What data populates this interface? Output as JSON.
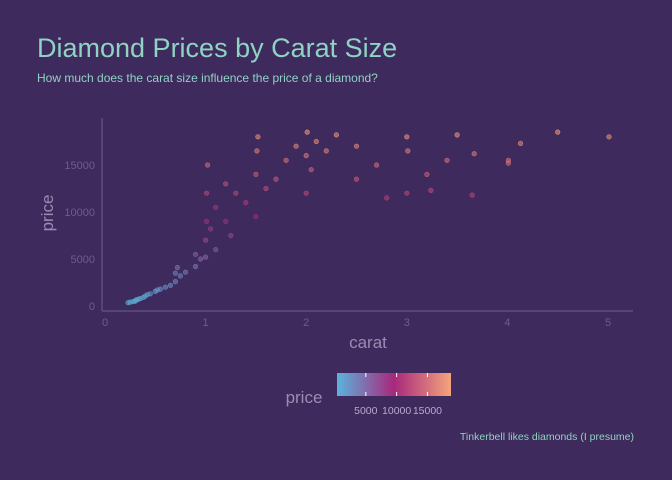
{
  "chart_data": {
    "type": "scatter",
    "title": "Diamond Prices by Carat Size",
    "subtitle": "How much does the carat size influence the price of a diamond?",
    "xlabel": "carat",
    "ylabel": "price",
    "caption": "Tinkerbell likes diamonds (I presume)",
    "xlim": [
      0,
      5.25
    ],
    "ylim": [
      0,
      19500
    ],
    "x_ticks": [
      0,
      1,
      2,
      3,
      4,
      5
    ],
    "x_tick_labels": [
      "0",
      "1",
      "2",
      "3",
      "4",
      "5"
    ],
    "y_ticks": [
      0,
      5000,
      10000,
      15000
    ],
    "y_tick_labels": [
      "0",
      "5000",
      "10000",
      "15000"
    ],
    "grid": false,
    "color_scale": {
      "variable": "price",
      "low_color": "#5bb3dd",
      "mid_color": "#a8287c",
      "high_color": "#f4a47c",
      "range": [
        326,
        18823
      ],
      "ticks": [
        5000,
        10000,
        15000
      ],
      "tick_labels": [
        "5000",
        "10000",
        "15000"
      ]
    },
    "legend_position": "bottom",
    "colors": {
      "background": "#3e2a5c",
      "title": "#8fd3c3",
      "axis": "#6f5d8e"
    },
    "series": [
      {
        "points": [
          [
            0.23,
            350
          ],
          [
            0.25,
            420
          ],
          [
            0.28,
            480
          ],
          [
            0.3,
            520
          ],
          [
            0.31,
            650
          ],
          [
            0.33,
            700
          ],
          [
            0.35,
            800
          ],
          [
            0.38,
            900
          ],
          [
            0.4,
            1050
          ],
          [
            0.42,
            1200
          ],
          [
            0.45,
            1300
          ],
          [
            0.5,
            1550
          ],
          [
            0.52,
            1700
          ],
          [
            0.55,
            1800
          ],
          [
            0.6,
            2000
          ],
          [
            0.65,
            2200
          ],
          [
            0.7,
            2600
          ],
          [
            0.7,
            3500
          ],
          [
            0.72,
            4100
          ],
          [
            0.75,
            3200
          ],
          [
            0.8,
            3600
          ],
          [
            0.9,
            4200
          ],
          [
            0.9,
            5500
          ],
          [
            0.95,
            5000
          ],
          [
            1.0,
            5200
          ],
          [
            1.0,
            7000
          ],
          [
            1.01,
            9000
          ],
          [
            1.01,
            12000
          ],
          [
            1.02,
            15000
          ],
          [
            1.05,
            8200
          ],
          [
            1.1,
            6000
          ],
          [
            1.1,
            10500
          ],
          [
            1.2,
            9000
          ],
          [
            1.2,
            13000
          ],
          [
            1.25,
            7500
          ],
          [
            1.3,
            12000
          ],
          [
            1.4,
            11000
          ],
          [
            1.5,
            9500
          ],
          [
            1.5,
            14000
          ],
          [
            1.51,
            16500
          ],
          [
            1.52,
            18000
          ],
          [
            1.6,
            12500
          ],
          [
            1.7,
            13500
          ],
          [
            1.8,
            15500
          ],
          [
            1.9,
            17000
          ],
          [
            2.0,
            12000
          ],
          [
            2.0,
            16000
          ],
          [
            2.01,
            18500
          ],
          [
            2.05,
            14500
          ],
          [
            2.1,
            17500
          ],
          [
            2.2,
            16500
          ],
          [
            2.3,
            18200
          ],
          [
            2.5,
            17000
          ],
          [
            2.5,
            13500
          ],
          [
            2.7,
            15000
          ],
          [
            2.8,
            11500
          ],
          [
            3.0,
            12000
          ],
          [
            3.0,
            18000
          ],
          [
            3.01,
            16500
          ],
          [
            3.2,
            14000
          ],
          [
            3.24,
            12300
          ],
          [
            3.4,
            15500
          ],
          [
            3.5,
            18200
          ],
          [
            3.65,
            11800
          ],
          [
            3.67,
            16200
          ],
          [
            4.01,
            15200
          ],
          [
            4.01,
            15500
          ],
          [
            4.13,
            17300
          ],
          [
            4.5,
            18500
          ],
          [
            5.01,
            18000
          ]
        ]
      }
    ]
  }
}
